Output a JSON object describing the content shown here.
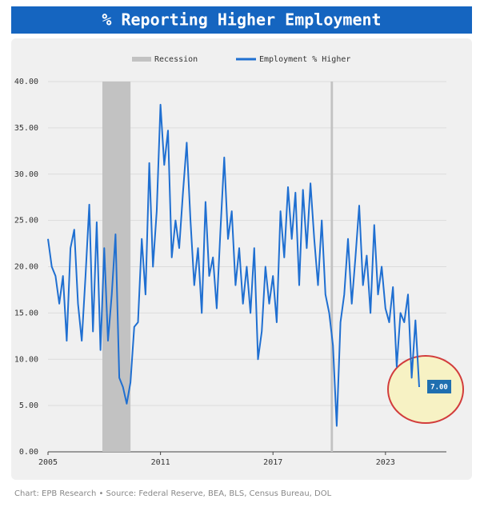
{
  "chart_data": {
    "type": "line",
    "title": "% Reporting Higher Employment",
    "footer": "Chart: EPB Research  •  Source: Federal Reserve, BEA, BLS, Census Bureau, DOL",
    "x": [
      2005.0,
      2005.2,
      2005.4,
      2005.6,
      2005.8,
      2006.0,
      2006.2,
      2006.4,
      2006.6,
      2006.8,
      2007.0,
      2007.2,
      2007.4,
      2007.6,
      2007.8,
      2008.0,
      2008.2,
      2008.4,
      2008.6,
      2008.8,
      2009.0,
      2009.2,
      2009.4,
      2009.6,
      2009.8,
      2010.0,
      2010.2,
      2010.4,
      2010.6,
      2010.8,
      2011.0,
      2011.2,
      2011.4,
      2011.6,
      2011.8,
      2012.0,
      2012.2,
      2012.4,
      2012.6,
      2012.8,
      2013.0,
      2013.2,
      2013.4,
      2013.6,
      2013.8,
      2014.0,
      2014.2,
      2014.4,
      2014.6,
      2014.8,
      2015.0,
      2015.2,
      2015.4,
      2015.6,
      2015.8,
      2016.0,
      2016.2,
      2016.4,
      2016.6,
      2016.8,
      2017.0,
      2017.2,
      2017.4,
      2017.6,
      2017.8,
      2018.0,
      2018.2,
      2018.4,
      2018.6,
      2018.8,
      2019.0,
      2019.2,
      2019.4,
      2019.6,
      2019.8,
      2020.0,
      2020.2,
      2020.4,
      2020.6,
      2020.8,
      2021.0,
      2021.2,
      2021.4,
      2021.6,
      2021.8,
      2022.0,
      2022.2,
      2022.4,
      2022.6,
      2022.8,
      2023.0,
      2023.2,
      2023.4,
      2023.6,
      2023.8,
      2024.0,
      2024.2,
      2024.4,
      2024.6,
      2024.8
    ],
    "series": [
      {
        "name": "Employment % Higher",
        "color": "#1f6fd1",
        "values": [
          23,
          20,
          19,
          16,
          19,
          12,
          22,
          24,
          16,
          12,
          19,
          26.7,
          13,
          24.8,
          11,
          22,
          12,
          17,
          23.5,
          8,
          7,
          5.2,
          7.5,
          13.5,
          14,
          23,
          17,
          31.2,
          20,
          26,
          37.5,
          31,
          34.7,
          21,
          25,
          22,
          28,
          33.4,
          25,
          18,
          22,
          15,
          27,
          19,
          21,
          15.5,
          24,
          31.8,
          23,
          26,
          18,
          22,
          16,
          20,
          15,
          22,
          10,
          13,
          20,
          16,
          19,
          14,
          26,
          21,
          28.6,
          23,
          28,
          18,
          28.3,
          22,
          29,
          23,
          18,
          25,
          17,
          15,
          11.5,
          2.8,
          14,
          17,
          23,
          16,
          21,
          26.6,
          18,
          21.2,
          15,
          24.5,
          17,
          20,
          15.5,
          14,
          17.8,
          9.2,
          15,
          14,
          17,
          8,
          14.2,
          7
        ],
        "value_labels": [
          null,
          null,
          null,
          null,
          null,
          null,
          null,
          null,
          null,
          null,
          null,
          null,
          null,
          null,
          null,
          null,
          null,
          null,
          null,
          null,
          null,
          null,
          null,
          null,
          null,
          null,
          null,
          null,
          null,
          null,
          null,
          null,
          null,
          null,
          null,
          null,
          null,
          null,
          null,
          null,
          null,
          null,
          null,
          null,
          null,
          null,
          null,
          null,
          null,
          null,
          null,
          null,
          null,
          null,
          null,
          null,
          null,
          null,
          null,
          null,
          null,
          null,
          null,
          null,
          null,
          null,
          null,
          null,
          null,
          null,
          null,
          null,
          null,
          null,
          null,
          null,
          null,
          null,
          null,
          null,
          null,
          null,
          null,
          null,
          null,
          null,
          null,
          null,
          null,
          null,
          null,
          null,
          null,
          null,
          null,
          null,
          null,
          null,
          null,
          "7.00"
        ]
      }
    ],
    "recession": {
      "name": "Recession",
      "color": "#c2c2c2",
      "ranges": [
        [
          2007.9,
          2009.4
        ],
        [
          2020.08,
          2020.2
        ]
      ]
    },
    "xlim": [
      2005,
      2026.25
    ],
    "xticks": [
      2005,
      2011,
      2017,
      2023
    ],
    "ylim": [
      0,
      40
    ],
    "yticks": [
      {
        "value": 0,
        "label": "0.00"
      },
      {
        "value": 5,
        "label": "5.00"
      },
      {
        "value": 10,
        "label": "10.00"
      },
      {
        "value": 15,
        "label": "15.00"
      },
      {
        "value": 20,
        "label": "20.00"
      },
      {
        "value": 25,
        "label": "25.00"
      },
      {
        "value": 30,
        "label": "30.00"
      },
      {
        "value": 35,
        "label": "35.00"
      },
      {
        "value": 40,
        "label": "40.00"
      }
    ],
    "grid": true,
    "legend": "top"
  }
}
